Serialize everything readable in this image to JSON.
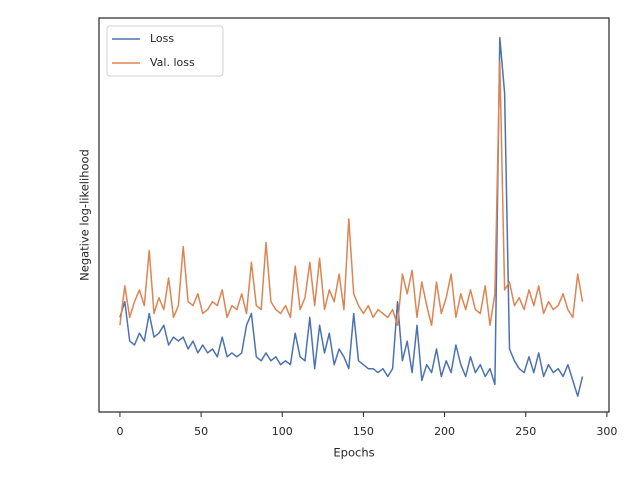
{
  "chart_data": {
    "type": "line",
    "xlabel": "Epochs",
    "ylabel": "Negative log-likelihood",
    "x": [
      0,
      3,
      6,
      9,
      12,
      15,
      18,
      21,
      24,
      27,
      30,
      33,
      36,
      39,
      42,
      45,
      48,
      51,
      54,
      57,
      60,
      63,
      66,
      69,
      72,
      75,
      78,
      81,
      84,
      87,
      90,
      93,
      96,
      99,
      102,
      105,
      108,
      111,
      114,
      117,
      120,
      123,
      126,
      129,
      132,
      135,
      138,
      141,
      144,
      147,
      150,
      153,
      156,
      159,
      162,
      165,
      168,
      171,
      174,
      177,
      180,
      183,
      186,
      189,
      192,
      195,
      198,
      201,
      204,
      207,
      210,
      213,
      216,
      219,
      222,
      225,
      228,
      231,
      234,
      237,
      240,
      243,
      246,
      249,
      252,
      255,
      258,
      261,
      264,
      267,
      270,
      273,
      276,
      279,
      282,
      285
    ],
    "series": [
      {
        "name": "Loss",
        "color": "#4c72b0",
        "values": [
          0.24,
          0.28,
          0.18,
          0.17,
          0.2,
          0.18,
          0.25,
          0.19,
          0.2,
          0.22,
          0.17,
          0.19,
          0.18,
          0.19,
          0.16,
          0.18,
          0.15,
          0.17,
          0.15,
          0.16,
          0.14,
          0.19,
          0.14,
          0.15,
          0.14,
          0.15,
          0.22,
          0.25,
          0.14,
          0.13,
          0.15,
          0.13,
          0.14,
          0.12,
          0.13,
          0.12,
          0.2,
          0.14,
          0.13,
          0.24,
          0.11,
          0.22,
          0.15,
          0.2,
          0.12,
          0.16,
          0.14,
          0.11,
          0.25,
          0.13,
          0.12,
          0.11,
          0.11,
          0.1,
          0.11,
          0.09,
          0.11,
          0.28,
          0.13,
          0.18,
          0.1,
          0.22,
          0.08,
          0.12,
          0.1,
          0.16,
          0.09,
          0.13,
          0.1,
          0.17,
          0.12,
          0.09,
          0.14,
          0.1,
          0.12,
          0.09,
          0.11,
          0.07,
          0.95,
          0.81,
          0.16,
          0.13,
          0.11,
          0.1,
          0.14,
          0.1,
          0.15,
          0.09,
          0.12,
          0.1,
          0.11,
          0.09,
          0.12,
          0.08,
          0.04,
          0.09
        ]
      },
      {
        "name": "Val. loss",
        "color": "#dd8452",
        "values": [
          0.22,
          0.32,
          0.24,
          0.28,
          0.31,
          0.27,
          0.41,
          0.25,
          0.29,
          0.26,
          0.34,
          0.24,
          0.27,
          0.42,
          0.28,
          0.27,
          0.3,
          0.25,
          0.26,
          0.28,
          0.27,
          0.31,
          0.24,
          0.27,
          0.26,
          0.3,
          0.25,
          0.38,
          0.27,
          0.26,
          0.43,
          0.28,
          0.26,
          0.25,
          0.27,
          0.24,
          0.37,
          0.26,
          0.29,
          0.38,
          0.27,
          0.39,
          0.26,
          0.31,
          0.28,
          0.35,
          0.26,
          0.49,
          0.3,
          0.27,
          0.25,
          0.27,
          0.24,
          0.26,
          0.25,
          0.24,
          0.26,
          0.22,
          0.35,
          0.3,
          0.36,
          0.24,
          0.33,
          0.27,
          0.22,
          0.33,
          0.25,
          0.29,
          0.35,
          0.24,
          0.3,
          0.26,
          0.31,
          0.26,
          0.25,
          0.32,
          0.22,
          0.3,
          0.89,
          0.31,
          0.33,
          0.27,
          0.29,
          0.26,
          0.31,
          0.27,
          0.32,
          0.25,
          0.28,
          0.26,
          0.27,
          0.3,
          0.26,
          0.24,
          0.35,
          0.28
        ]
      }
    ],
    "xlim": [
      -12.9,
      301.3
    ],
    "xticks": [
      0,
      50,
      100,
      150,
      200,
      250,
      300
    ],
    "ylim": [
      0,
      1
    ],
    "legend": "upper left"
  }
}
